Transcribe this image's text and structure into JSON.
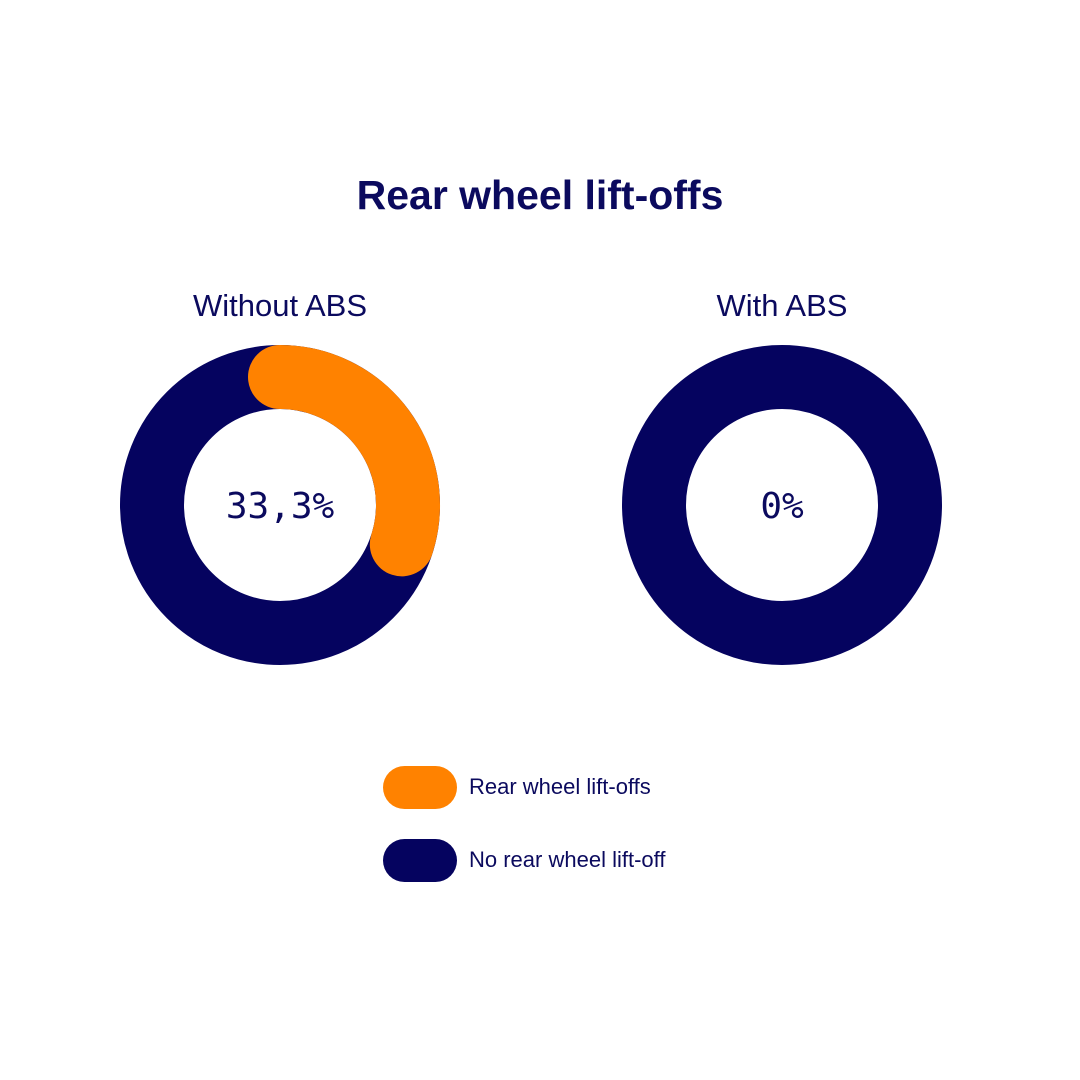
{
  "chart_data": {
    "type": "pie",
    "title": "Rear wheel lift-offs",
    "legend_position": "bottom",
    "series_colors": {
      "Rear wheel lift-offs": "#ff8200",
      "No rear wheel lift-off": "#05035f"
    },
    "charts": [
      {
        "label": "Without ABS",
        "center_text": "33,3%",
        "slices": [
          {
            "name": "Rear wheel lift-offs",
            "value": 33.3
          },
          {
            "name": "No rear wheel lift-off",
            "value": 66.7
          }
        ]
      },
      {
        "label": "With ABS",
        "center_text": "0%",
        "slices": [
          {
            "name": "Rear wheel lift-offs",
            "value": 0
          },
          {
            "name": "No rear wheel lift-off",
            "value": 100
          }
        ]
      }
    ],
    "legend": [
      {
        "name": "Rear wheel lift-offs",
        "color": "#ff8200"
      },
      {
        "name": "No rear wheel lift-off",
        "color": "#05035f"
      }
    ]
  }
}
